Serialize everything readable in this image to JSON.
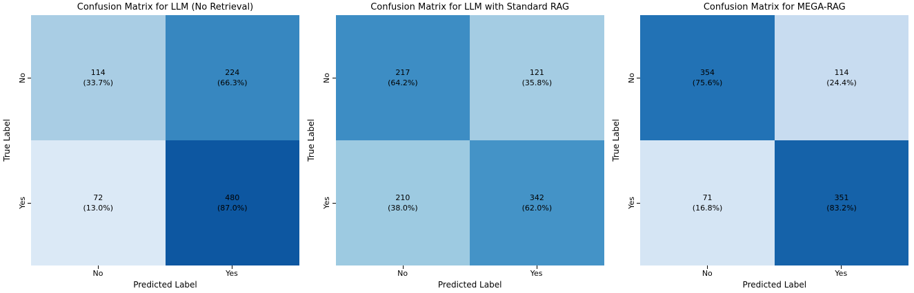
{
  "figure": {
    "xlabel": "Predicted Label",
    "ylabel": "True Label",
    "xticks": {
      "no": "No",
      "yes": "Yes"
    },
    "yticks": {
      "no": "No",
      "yes": "Yes"
    }
  },
  "panels": [
    {
      "title": "Confusion Matrix for LLM (No Retrieval)",
      "cells": [
        {
          "count": "114",
          "percent": "(33.7%)",
          "color": "#a9cde4"
        },
        {
          "count": "224",
          "percent": "(66.3%)",
          "color": "#3787c0"
        },
        {
          "count": "72",
          "percent": "(13.0%)",
          "color": "#dbe9f6"
        },
        {
          "count": "480",
          "percent": "(87.0%)",
          "color": "#0d57a1"
        }
      ]
    },
    {
      "title": "Confusion Matrix for LLM with Standard RAG",
      "cells": [
        {
          "count": "217",
          "percent": "(64.2%)",
          "color": "#3d8dc4"
        },
        {
          "count": "121",
          "percent": "(35.8%)",
          "color": "#a4cce3"
        },
        {
          "count": "210",
          "percent": "(38.0%)",
          "color": "#9dcae1"
        },
        {
          "count": "342",
          "percent": "(62.0%)",
          "color": "#4493c7"
        }
      ]
    },
    {
      "title": "Confusion Matrix for MEGA-RAG",
      "cells": [
        {
          "count": "354",
          "percent": "(75.6%)",
          "color": "#2272b5"
        },
        {
          "count": "114",
          "percent": "(24.4%)",
          "color": "#c8dcf0"
        },
        {
          "count": "71",
          "percent": "(16.8%)",
          "color": "#d5e5f4"
        },
        {
          "count": "351",
          "percent": "(83.2%)",
          "color": "#1562a9"
        }
      ]
    }
  ],
  "chart_data": [
    {
      "type": "heatmap",
      "title": "Confusion Matrix for LLM (No Retrieval)",
      "xlabel": "Predicted Label",
      "ylabel": "True Label",
      "x_categories": [
        "No",
        "Yes"
      ],
      "y_categories": [
        "No",
        "Yes"
      ],
      "values": [
        [
          114,
          224
        ],
        [
          72,
          480
        ]
      ],
      "row_percentages": [
        [
          33.7,
          66.3
        ],
        [
          13.0,
          87.0
        ]
      ],
      "colormap": "Blues",
      "legend": "none",
      "grid": false
    },
    {
      "type": "heatmap",
      "title": "Confusion Matrix for LLM with Standard RAG",
      "xlabel": "Predicted Label",
      "ylabel": "True Label",
      "x_categories": [
        "No",
        "Yes"
      ],
      "y_categories": [
        "No",
        "Yes"
      ],
      "values": [
        [
          217,
          121
        ],
        [
          210,
          342
        ]
      ],
      "row_percentages": [
        [
          64.2,
          35.8
        ],
        [
          38.0,
          62.0
        ]
      ],
      "colormap": "Blues",
      "legend": "none",
      "grid": false
    },
    {
      "type": "heatmap",
      "title": "Confusion Matrix for MEGA-RAG",
      "xlabel": "Predicted Label",
      "ylabel": "True Label",
      "x_categories": [
        "No",
        "Yes"
      ],
      "y_categories": [
        "No",
        "Yes"
      ],
      "values": [
        [
          354,
          114
        ],
        [
          71,
          351
        ]
      ],
      "row_percentages": [
        [
          75.6,
          24.4
        ],
        [
          16.8,
          83.2
        ]
      ],
      "colormap": "Blues",
      "legend": "none",
      "grid": false
    }
  ]
}
